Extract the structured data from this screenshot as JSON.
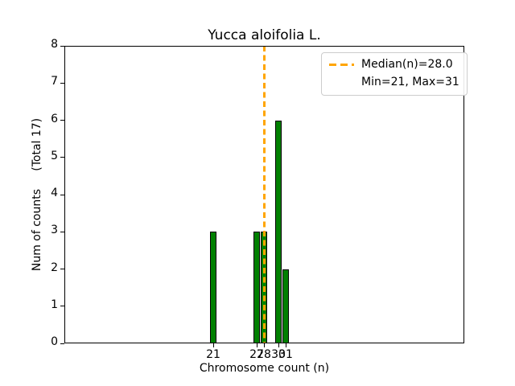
{
  "chart_data": {
    "type": "bar",
    "title": "Yucca aloifolia L.",
    "xlabel": "Chromosome count (n)",
    "ylabel": "Num of counts     (Total 17)",
    "categories": [
      21,
      27,
      28,
      30,
      31
    ],
    "values": [
      3,
      3,
      3,
      6,
      2
    ],
    "total_counts": 17,
    "median": 28.0,
    "min": 21,
    "max": 31,
    "xlim": [
      0.44,
      55.67
    ],
    "ylim": [
      0,
      8
    ],
    "yticks": [
      0,
      1,
      2,
      3,
      4,
      5,
      6,
      7,
      8
    ],
    "bar_width_units": 0.9,
    "grid": false,
    "legend_position": "upper right",
    "legend": {
      "entries": [
        {
          "label": "Median(n)=28.0",
          "handle": "orange-dashed-line"
        },
        {
          "label": "Min=21, Max=31",
          "handle": "none"
        }
      ]
    },
    "colors": {
      "bar_fill": "#008000",
      "bar_edge": "#000000",
      "median_line": "#FFA500",
      "text": "#000000",
      "spine": "#000000",
      "legend_border": "#cccccc",
      "background": "#ffffff"
    }
  }
}
